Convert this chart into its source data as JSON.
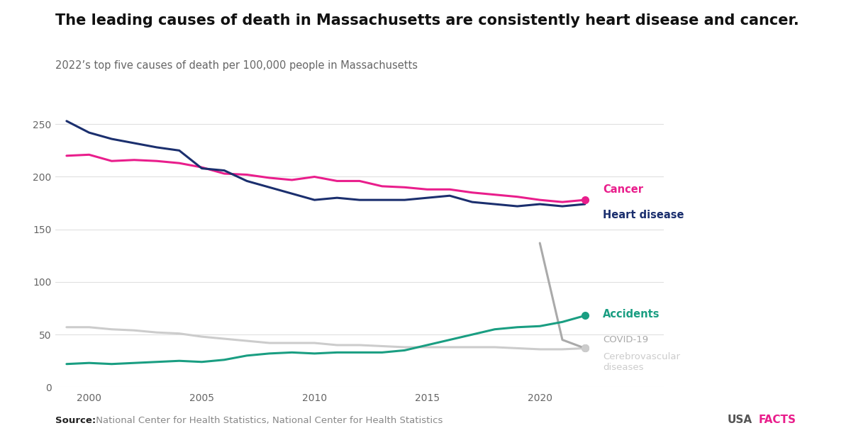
{
  "title": "The leading causes of death in Massachusetts are consistently heart disease and cancer.",
  "subtitle": "2022’s top five causes of death per 100,000 people in Massachusetts",
  "source_bold": "Source:",
  "source_rest": " National Center for Health Statistics, National Center for Health Statistics",
  "years": [
    1999,
    2000,
    2001,
    2002,
    2003,
    2004,
    2005,
    2006,
    2007,
    2008,
    2009,
    2010,
    2011,
    2012,
    2013,
    2014,
    2015,
    2016,
    2017,
    2018,
    2019,
    2020,
    2021,
    2022
  ],
  "heart_disease": [
    253,
    242,
    236,
    232,
    228,
    225,
    208,
    206,
    196,
    190,
    184,
    178,
    180,
    178,
    178,
    178,
    180,
    182,
    176,
    174,
    172,
    174,
    172,
    174
  ],
  "cancer": [
    220,
    221,
    215,
    216,
    215,
    213,
    209,
    203,
    202,
    199,
    197,
    200,
    196,
    196,
    191,
    190,
    188,
    188,
    185,
    183,
    181,
    178,
    176,
    178
  ],
  "accidents": [
    22,
    23,
    22,
    23,
    24,
    25,
    24,
    26,
    30,
    32,
    33,
    32,
    33,
    33,
    33,
    35,
    40,
    45,
    50,
    55,
    57,
    58,
    62,
    68
  ],
  "covid_years": [
    2020,
    2021,
    2022
  ],
  "covid_vals": [
    137,
    45,
    37
  ],
  "cerebrovascular": [
    57,
    57,
    55,
    54,
    52,
    51,
    48,
    46,
    44,
    42,
    42,
    42,
    40,
    40,
    39,
    38,
    38,
    38,
    38,
    38,
    37,
    36,
    36,
    37
  ],
  "heart_color": "#1b2f6e",
  "cancer_color": "#e91e8c",
  "accidents_color": "#1a9e82",
  "covid_color": "#aaaaaa",
  "cerebrovascular_color": "#cccccc",
  "background_color": "#ffffff",
  "ylim": [
    0,
    275
  ],
  "yticks": [
    0,
    50,
    100,
    150,
    200,
    250
  ],
  "xlim_left": 1998.5,
  "xlim_right": 2025.5,
  "title_fontsize": 15,
  "subtitle_fontsize": 10.5,
  "source_fontsize": 9.5,
  "line_width": 2.2,
  "label_fontsize": 10.5,
  "label_fontsize_small": 9.5
}
